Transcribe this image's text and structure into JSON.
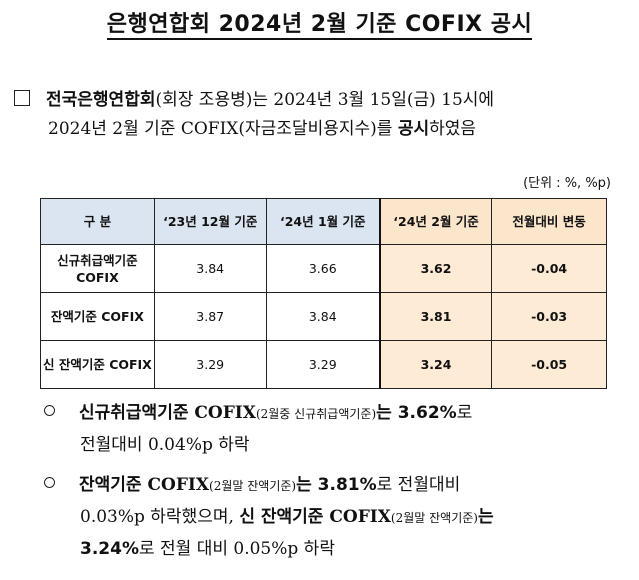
{
  "title": "은행연합회 2024년 2월 기준 COFIX 공시",
  "intro": {
    "org": "전국은행연합회",
    "paren": "(회장 조용병)",
    "text1": "는 2024년 3월 15일(금) 15시에",
    "text2_pre": "2024년 2월 기준 COFIX(자금조달비용지수)를 ",
    "text2_bold": "공시",
    "text2_post": "하였음"
  },
  "unit": "(단위 : %, %p)",
  "table": {
    "headers": [
      "구 분",
      "‘23년 12월 기준",
      "‘24년 1월 기준",
      "‘24년 2월 기준",
      "전월대비 변동"
    ],
    "rows": [
      {
        "label": "신규취급액기준 COFIX",
        "dec": "3.84",
        "jan": "3.66",
        "feb": "3.62",
        "chg": "-0.04"
      },
      {
        "label": "잔액기준 COFIX",
        "dec": "3.87",
        "jan": "3.84",
        "feb": "3.81",
        "chg": "-0.03"
      },
      {
        "label": "신 잔액기준 COFIX",
        "dec": "3.29",
        "jan": "3.29",
        "feb": "3.24",
        "chg": "-0.05"
      }
    ]
  },
  "bullet1": {
    "head": "신규취급액기준 COFIX",
    "paren": "(2월중 신규취급액기준)",
    "is": "는 ",
    "value": "3.62%",
    "tail": "로",
    "line2": "전월대비 0.04%p 하락"
  },
  "bullet2": {
    "head": "잔액기준 COFIX",
    "paren": "(2월말 잔액기준)",
    "is": "는 ",
    "value": "3.81%",
    "tail": "로 전월대비",
    "line2_pre": "0.03%p 하락했으며, ",
    "head2": "신 잔액기준 COFIX",
    "paren2": "(2월말 잔액기준)",
    "is2": "는",
    "value2": "3.24%",
    "line3_post": "로 전월 대비 0.05%p 하락"
  }
}
